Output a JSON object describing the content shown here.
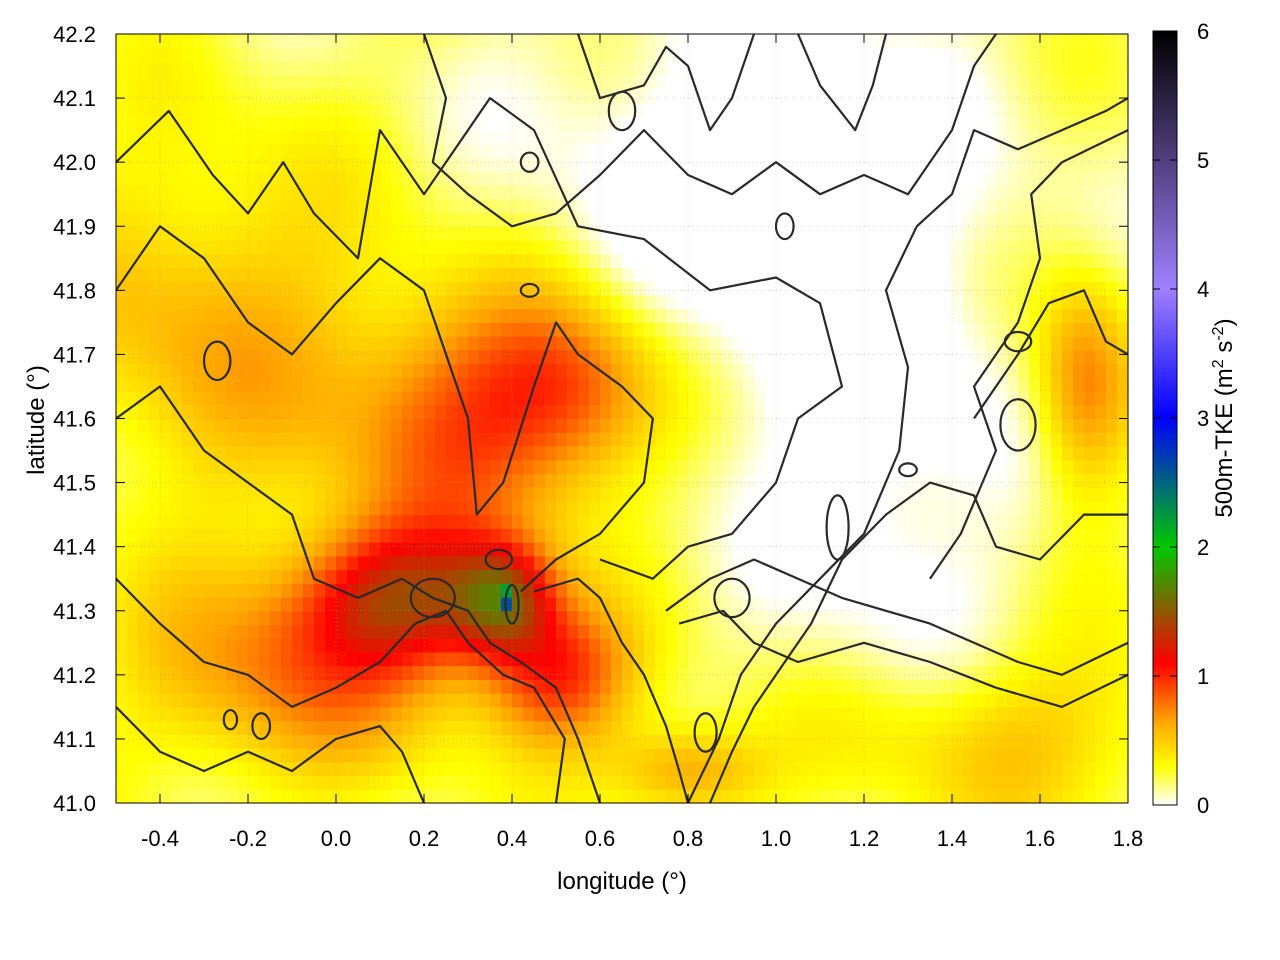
{
  "chart_data": {
    "type": "heatmap",
    "title": "",
    "xlabel": "longitude (°)",
    "ylabel": "latitude (°)",
    "xlim": [
      -0.5,
      1.8
    ],
    "ylim": [
      41.0,
      42.2
    ],
    "x_ticks": [
      "-0.4",
      "-0.2",
      "0.0",
      "0.2",
      "0.4",
      "0.6",
      "0.8",
      "1.0",
      "1.2",
      "1.4",
      "1.6",
      "1.8"
    ],
    "y_ticks": [
      "41.0",
      "41.1",
      "41.2",
      "41.3",
      "41.4",
      "41.5",
      "41.6",
      "41.7",
      "41.8",
      "41.9",
      "42.0",
      "42.1",
      "42.2"
    ],
    "grid": true,
    "colorbar": {
      "label_main": "500m-TKE (m",
      "sup1": "2",
      "label_mid": " s",
      "sup2": "-2",
      "label_end": ")",
      "range": [
        0,
        6
      ],
      "ticks": [
        "0",
        "1",
        "2",
        "3",
        "4",
        "5",
        "6"
      ],
      "colors": [
        "#ffffff",
        "#ffff00",
        "#ffa500",
        "#ff0000",
        "#00c800",
        "#0000ff",
        "#a080ff",
        "#000000"
      ],
      "color_stops": [
        0,
        0.3,
        0.65,
        1.1,
        2.0,
        3.0,
        4.0,
        6.0
      ]
    },
    "hotspots": [
      {
        "lon": 0.15,
        "lat": 41.32,
        "value": 0.95,
        "sx": 0.16,
        "sy": 0.08
      },
      {
        "lon": 0.38,
        "lat": 41.32,
        "value": 0.9,
        "sx": 0.08,
        "sy": 0.06
      },
      {
        "lon": 0.5,
        "lat": 41.2,
        "value": 0.8,
        "sx": 0.12,
        "sy": 0.08
      },
      {
        "lon": 0.3,
        "lat": 41.6,
        "value": 0.65,
        "sx": 0.22,
        "sy": 0.15
      },
      {
        "lon": 0.55,
        "lat": 41.65,
        "value": 0.55,
        "sx": 0.15,
        "sy": 0.1
      },
      {
        "lon": -0.1,
        "lat": 41.2,
        "value": 0.55,
        "sx": 0.25,
        "sy": 0.12
      },
      {
        "lon": -0.3,
        "lat": 41.75,
        "value": 0.4,
        "sx": 0.25,
        "sy": 0.2
      },
      {
        "lon": 1.7,
        "lat": 41.65,
        "value": 0.6,
        "sx": 0.08,
        "sy": 0.12
      },
      {
        "lon": 1.5,
        "lat": 41.1,
        "value": 0.35,
        "sx": 0.3,
        "sy": 0.1
      },
      {
        "lon": 0.8,
        "lat": 41.05,
        "value": 0.5,
        "sx": 0.12,
        "sy": 0.05
      },
      {
        "lon": 0.39,
        "lat": 41.32,
        "value": 2.0,
        "sx": 0.006,
        "sy": 0.008
      }
    ],
    "contours": [
      [
        [
          -0.5,
          42.0
        ],
        [
          -0.38,
          42.08
        ],
        [
          -0.28,
          41.98
        ],
        [
          -0.2,
          41.92
        ],
        [
          -0.12,
          42.0
        ],
        [
          -0.05,
          41.92
        ],
        [
          0.05,
          41.85
        ],
        [
          0.1,
          42.05
        ],
        [
          0.2,
          41.95
        ],
        [
          0.35,
          42.1
        ],
        [
          0.45,
          42.05
        ],
        [
          0.55,
          41.9
        ],
        [
          0.7,
          41.88
        ],
        [
          0.85,
          41.8
        ],
        [
          1.0,
          41.82
        ],
        [
          1.1,
          41.78
        ],
        [
          1.15,
          41.65
        ],
        [
          1.05,
          41.6
        ],
        [
          1.0,
          41.5
        ],
        [
          0.9,
          41.42
        ],
        [
          0.8,
          41.4
        ],
        [
          0.72,
          41.35
        ],
        [
          0.6,
          41.38
        ]
      ],
      [
        [
          -0.5,
          41.8
        ],
        [
          -0.4,
          41.9
        ],
        [
          -0.3,
          41.85
        ],
        [
          -0.2,
          41.75
        ],
        [
          -0.1,
          41.7
        ],
        [
          0.0,
          41.78
        ],
        [
          0.1,
          41.85
        ],
        [
          0.2,
          41.8
        ],
        [
          0.25,
          41.7
        ],
        [
          0.3,
          41.6
        ],
        [
          0.32,
          41.45
        ],
        [
          0.38,
          41.5
        ],
        [
          0.45,
          41.65
        ],
        [
          0.5,
          41.75
        ],
        [
          0.55,
          41.7
        ],
        [
          0.65,
          41.65
        ],
        [
          0.72,
          41.6
        ],
        [
          0.7,
          41.5
        ],
        [
          0.6,
          41.42
        ],
        [
          0.5,
          41.38
        ],
        [
          0.42,
          41.33
        ]
      ],
      [
        [
          -0.5,
          41.6
        ],
        [
          -0.4,
          41.65
        ],
        [
          -0.3,
          41.55
        ],
        [
          -0.2,
          41.5
        ],
        [
          -0.1,
          41.45
        ],
        [
          -0.05,
          41.35
        ],
        [
          0.05,
          41.32
        ],
        [
          0.15,
          41.35
        ],
        [
          0.22,
          41.32
        ],
        [
          0.3,
          41.3
        ],
        [
          0.35,
          41.25
        ],
        [
          0.42,
          41.22
        ],
        [
          0.5,
          41.18
        ],
        [
          0.55,
          41.1
        ],
        [
          0.6,
          41.0
        ]
      ],
      [
        [
          -0.5,
          41.35
        ],
        [
          -0.4,
          41.28
        ],
        [
          -0.3,
          41.22
        ],
        [
          -0.2,
          41.2
        ],
        [
          -0.1,
          41.15
        ],
        [
          0.0,
          41.18
        ],
        [
          0.1,
          41.22
        ],
        [
          0.18,
          41.28
        ],
        [
          0.25,
          41.3
        ],
        [
          0.3,
          41.25
        ],
        [
          0.38,
          41.2
        ],
        [
          0.45,
          41.18
        ],
        [
          0.52,
          41.1
        ],
        [
          0.5,
          41.0
        ]
      ],
      [
        [
          -0.5,
          41.15
        ],
        [
          -0.4,
          41.08
        ],
        [
          -0.3,
          41.05
        ],
        [
          -0.2,
          41.08
        ],
        [
          -0.1,
          41.05
        ],
        [
          0.0,
          41.1
        ],
        [
          0.1,
          41.12
        ],
        [
          0.15,
          41.08
        ],
        [
          0.2,
          41.0
        ]
      ],
      [
        [
          0.45,
          41.33
        ],
        [
          0.55,
          41.35
        ],
        [
          0.6,
          41.32
        ],
        [
          0.65,
          41.25
        ],
        [
          0.7,
          41.2
        ],
        [
          0.75,
          41.12
        ],
        [
          0.78,
          41.05
        ],
        [
          0.8,
          41.0
        ]
      ],
      [
        [
          0.75,
          41.3
        ],
        [
          0.85,
          41.35
        ],
        [
          0.95,
          41.38
        ],
        [
          1.05,
          41.35
        ],
        [
          1.15,
          41.32
        ],
        [
          1.25,
          41.3
        ],
        [
          1.35,
          41.28
        ],
        [
          1.45,
          41.25
        ],
        [
          1.55,
          41.22
        ],
        [
          1.65,
          41.2
        ],
        [
          1.8,
          41.25
        ]
      ],
      [
        [
          0.78,
          41.28
        ],
        [
          0.88,
          41.3
        ],
        [
          0.95,
          41.25
        ],
        [
          1.05,
          41.22
        ],
        [
          1.2,
          41.25
        ],
        [
          1.35,
          41.22
        ],
        [
          1.5,
          41.18
        ],
        [
          1.65,
          41.15
        ],
        [
          1.8,
          41.2
        ]
      ],
      [
        [
          0.85,
          41.0
        ],
        [
          0.9,
          41.08
        ],
        [
          0.95,
          41.15
        ],
        [
          1.0,
          41.2
        ],
        [
          1.08,
          41.28
        ],
        [
          1.15,
          41.38
        ],
        [
          1.25,
          41.45
        ],
        [
          1.35,
          41.5
        ],
        [
          1.45,
          41.48
        ],
        [
          1.5,
          41.4
        ],
        [
          1.6,
          41.38
        ],
        [
          1.7,
          41.45
        ],
        [
          1.8,
          41.45
        ]
      ],
      [
        [
          0.8,
          41.0
        ],
        [
          0.87,
          41.1
        ],
        [
          0.92,
          41.2
        ],
        [
          1.0,
          41.28
        ],
        [
          1.1,
          41.35
        ],
        [
          1.2,
          41.42
        ],
        [
          1.28,
          41.55
        ],
        [
          1.3,
          41.68
        ],
        [
          1.25,
          41.8
        ],
        [
          1.32,
          41.9
        ],
        [
          1.4,
          41.95
        ],
        [
          1.45,
          42.05
        ],
        [
          1.55,
          42.02
        ],
        [
          1.65,
          42.05
        ],
        [
          1.75,
          42.08
        ],
        [
          1.8,
          42.1
        ]
      ],
      [
        [
          1.45,
          41.6
        ],
        [
          1.55,
          41.7
        ],
        [
          1.62,
          41.78
        ],
        [
          1.7,
          41.8
        ],
        [
          1.75,
          41.72
        ],
        [
          1.8,
          41.7
        ]
      ],
      [
        [
          1.35,
          41.35
        ],
        [
          1.42,
          41.42
        ],
        [
          1.5,
          41.55
        ],
        [
          1.45,
          41.65
        ],
        [
          1.55,
          41.75
        ],
        [
          1.6,
          41.85
        ],
        [
          1.58,
          41.95
        ],
        [
          1.65,
          42.0
        ],
        [
          1.8,
          42.05
        ]
      ],
      [
        [
          0.2,
          42.2
        ],
        [
          0.25,
          42.1
        ],
        [
          0.22,
          42.0
        ],
        [
          0.3,
          41.95
        ],
        [
          0.4,
          41.9
        ],
        [
          0.5,
          41.92
        ],
        [
          0.6,
          41.98
        ],
        [
          0.7,
          42.05
        ],
        [
          0.8,
          41.98
        ],
        [
          0.9,
          41.95
        ],
        [
          1.0,
          42.0
        ],
        [
          1.1,
          41.95
        ],
        [
          1.2,
          41.98
        ],
        [
          1.3,
          41.95
        ],
        [
          1.4,
          42.05
        ],
        [
          1.45,
          42.15
        ],
        [
          1.5,
          42.2
        ]
      ],
      [
        [
          0.55,
          42.2
        ],
        [
          0.6,
          42.1
        ],
        [
          0.7,
          42.12
        ],
        [
          0.75,
          42.18
        ],
        [
          0.8,
          42.15
        ],
        [
          0.85,
          42.05
        ],
        [
          0.9,
          42.1
        ],
        [
          0.95,
          42.2
        ]
      ],
      [
        [
          1.05,
          42.2
        ],
        [
          1.1,
          42.12
        ],
        [
          1.18,
          42.05
        ],
        [
          1.22,
          42.12
        ],
        [
          1.25,
          42.2
        ]
      ]
    ],
    "small_contours": [
      {
        "lon": -0.27,
        "lat": 41.69,
        "rx": 0.03,
        "ry": 0.03
      },
      {
        "lon": -0.17,
        "lat": 41.12,
        "rx": 0.02,
        "ry": 0.02
      },
      {
        "lon": -0.24,
        "lat": 41.13,
        "rx": 0.015,
        "ry": 0.015
      },
      {
        "lon": 0.37,
        "lat": 41.38,
        "rx": 0.03,
        "ry": 0.015
      },
      {
        "lon": 0.4,
        "lat": 41.31,
        "rx": 0.015,
        "ry": 0.03
      },
      {
        "lon": 0.22,
        "lat": 41.32,
        "rx": 0.05,
        "ry": 0.03
      },
      {
        "lon": 0.9,
        "lat": 41.32,
        "rx": 0.04,
        "ry": 0.03
      },
      {
        "lon": 0.44,
        "lat": 42.0,
        "rx": 0.02,
        "ry": 0.015
      },
      {
        "lon": 0.65,
        "lat": 42.08,
        "rx": 0.03,
        "ry": 0.03
      },
      {
        "lon": 1.02,
        "lat": 41.9,
        "rx": 0.02,
        "ry": 0.02
      },
      {
        "lon": 1.55,
        "lat": 41.72,
        "rx": 0.03,
        "ry": 0.015
      },
      {
        "lon": 1.55,
        "lat": 41.59,
        "rx": 0.04,
        "ry": 0.04
      },
      {
        "lon": 1.3,
        "lat": 41.52,
        "rx": 0.02,
        "ry": 0.01
      },
      {
        "lon": 0.84,
        "lat": 41.11,
        "rx": 0.025,
        "ry": 0.03
      },
      {
        "lon": 1.14,
        "lat": 41.43,
        "rx": 0.025,
        "ry": 0.05
      },
      {
        "lon": 0.44,
        "lat": 41.8,
        "rx": 0.02,
        "ry": 0.01
      }
    ]
  }
}
